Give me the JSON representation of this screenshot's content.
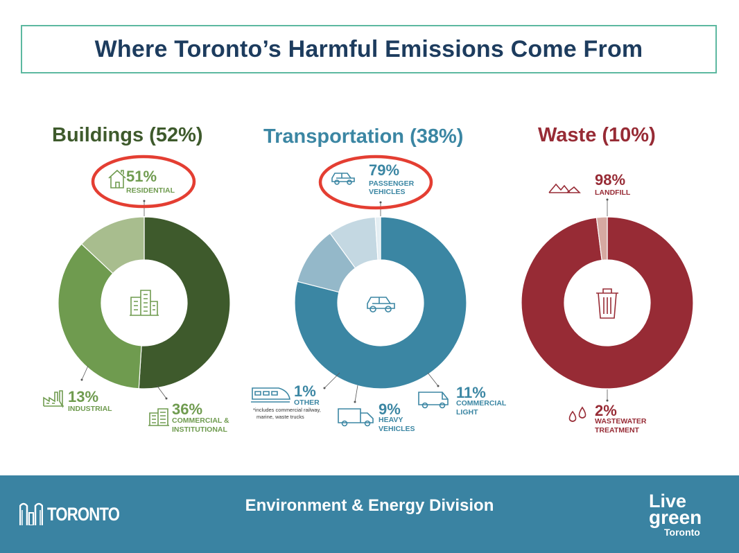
{
  "title": "Where Toronto’s Harmful Emissions Come From",
  "colors": {
    "buildings": "#3e5a2c",
    "buildings_light": "#6f9b4f",
    "buildings_pale": "#a8bd8e",
    "transportation": "#3b86a3",
    "transportation_light": "#94b8c9",
    "transportation_pale": "#c4d8e2",
    "waste": "#972b35",
    "waste_light": "#d6a9a1",
    "highlight": "#e43e32",
    "footer": "#3a83a2"
  },
  "chart_data": [
    {
      "type": "pie",
      "title": "Buildings (52%)",
      "slices": [
        {
          "label": "RESIDENTIAL",
          "value": 51,
          "display": "51%",
          "icon": "house-icon",
          "color": "#3e5a2c",
          "highlighted": true
        },
        {
          "label": "COMMERCIAL & INSTITUTIONAL",
          "value": 36,
          "display": "36%",
          "icon": "office-building-icon",
          "color": "#6f9b4f"
        },
        {
          "label": "INDUSTRIAL",
          "value": 13,
          "display": "13%",
          "icon": "factory-icon",
          "color": "#a8bd8e"
        }
      ],
      "center_icon": "buildings-icon"
    },
    {
      "type": "pie",
      "title": "Transportation (38%)",
      "slices": [
        {
          "label": "PASSENGER VEHICLES",
          "value": 79,
          "display": "79%",
          "icon": "car-icon",
          "color": "#3b86a3",
          "highlighted": true
        },
        {
          "label": "COMMERCIAL LIGHT",
          "value": 11,
          "display": "11%",
          "icon": "van-icon",
          "color": "#94b8c9"
        },
        {
          "label": "HEAVY VEHICLES",
          "value": 9,
          "display": "9%",
          "icon": "truck-icon",
          "color": "#c4d8e2"
        },
        {
          "label": "OTHER",
          "value": 1,
          "display": "1%",
          "icon": "train-icon",
          "color": "#e4eef3",
          "note": "*includes commercial railway, marine, waste trucks"
        }
      ],
      "center_icon": "car-icon"
    },
    {
      "type": "pie",
      "title": "Waste (10%)",
      "slices": [
        {
          "label": "LANDFILL",
          "value": 98,
          "display": "98%",
          "icon": "landfill-icon",
          "color": "#972b35"
        },
        {
          "label": "WASTEWATER TREATMENT",
          "value": 2,
          "display": "2%",
          "icon": "water-drops-icon",
          "color": "#d6a9a1"
        }
      ],
      "center_icon": "trash-can-icon"
    }
  ],
  "footer": {
    "city_logo_text": "TORONTO",
    "division": "Environment & Energy Division",
    "livegreen_line1": "Live",
    "livegreen_line2": "green",
    "livegreen_line3": "Toronto"
  }
}
